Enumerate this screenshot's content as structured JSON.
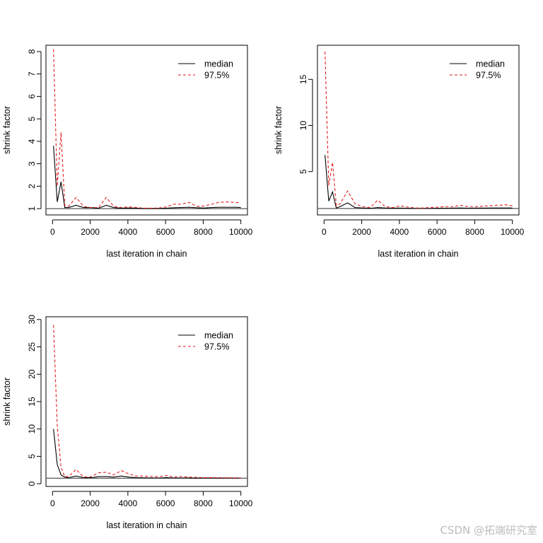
{
  "chart_data": [
    {
      "type": "line",
      "xlabel": "last iteration in chain",
      "ylabel": "shrink factor",
      "xticks": [
        0,
        2000,
        4000,
        6000,
        8000,
        10000
      ],
      "yticks": [
        1,
        2,
        3,
        4,
        5,
        6,
        7,
        8
      ],
      "xlim": [
        -350,
        10350
      ],
      "ylim": [
        0.72,
        8.28
      ],
      "reference_line": 1,
      "legend_position": "top-right",
      "series": [
        {
          "name": "median",
          "color": "#000000",
          "dash": "solid",
          "x": [
            50,
            250,
            450,
            650,
            850,
            1250,
            1650,
            2050,
            2450,
            2850,
            3250,
            3650,
            4050,
            4450,
            4850,
            5250,
            5650,
            6050,
            6450,
            6850,
            7250,
            7650,
            8050,
            8450,
            8850,
            9250,
            9650,
            10000
          ],
          "y": [
            3.8,
            1.3,
            2.2,
            1.05,
            1.05,
            1.15,
            1.05,
            1.05,
            1.02,
            1.15,
            1.05,
            1.02,
            1.03,
            1.02,
            1.01,
            1.01,
            1.01,
            1.02,
            1.04,
            1.05,
            1.06,
            1.04,
            1.03,
            1.05,
            1.06,
            1.06,
            1.06,
            1.05
          ]
        },
        {
          "name": "97.5%",
          "color": "#e41a1c",
          "dash": "dashed",
          "x": [
            50,
            250,
            450,
            650,
            850,
            1250,
            1650,
            2050,
            2450,
            2850,
            3250,
            3650,
            4050,
            4450,
            4850,
            5250,
            5650,
            6050,
            6450,
            6850,
            7250,
            7650,
            8050,
            8450,
            8850,
            9250,
            9650,
            10000
          ],
          "y": [
            8.1,
            2.0,
            4.4,
            1.15,
            1.1,
            1.5,
            1.1,
            1.05,
            1.05,
            1.5,
            1.1,
            1.05,
            1.08,
            1.05,
            1.02,
            1.02,
            1.03,
            1.08,
            1.2,
            1.2,
            1.28,
            1.1,
            1.12,
            1.2,
            1.28,
            1.3,
            1.28,
            1.25
          ]
        }
      ]
    },
    {
      "type": "line",
      "xlabel": "last iteration in chain",
      "ylabel": "shrink factor",
      "xticks": [
        0,
        2000,
        4000,
        6000,
        8000,
        10000
      ],
      "yticks": [
        5,
        10,
        15
      ],
      "xlim": [
        -350,
        10350
      ],
      "ylim": [
        0.3,
        18.7
      ],
      "reference_line": 1,
      "legend_position": "top-right",
      "series": [
        {
          "name": "median",
          "color": "#000000",
          "dash": "solid",
          "x": [
            50,
            250,
            450,
            650,
            850,
            1250,
            1650,
            2050,
            2450,
            2850,
            3250,
            3650,
            4050,
            4450,
            4850,
            5250,
            5650,
            6050,
            6450,
            6850,
            7250,
            7650,
            8050,
            8450,
            8850,
            9250,
            9650,
            10000
          ],
          "y": [
            6.8,
            1.8,
            2.8,
            1.05,
            1.2,
            1.6,
            1.1,
            1.05,
            1.02,
            1.1,
            1.05,
            1.03,
            1.04,
            1.02,
            1.01,
            1.01,
            1.01,
            1.02,
            1.03,
            1.04,
            1.05,
            1.03,
            1.04,
            1.04,
            1.05,
            1.05,
            1.05,
            1.05
          ]
        },
        {
          "name": "97.5%",
          "color": "#e41a1c",
          "dash": "dashed",
          "x": [
            50,
            250,
            450,
            650,
            850,
            1250,
            1650,
            2050,
            2450,
            2850,
            3250,
            3650,
            4050,
            4450,
            4850,
            5250,
            5650,
            6050,
            6450,
            6850,
            7250,
            7650,
            8050,
            8450,
            8850,
            9250,
            9650,
            10000
          ],
          "y": [
            18.0,
            3.5,
            6.0,
            1.3,
            1.5,
            2.9,
            1.5,
            1.2,
            1.1,
            1.9,
            1.2,
            1.1,
            1.3,
            1.15,
            1.05,
            1.05,
            1.1,
            1.15,
            1.2,
            1.2,
            1.35,
            1.2,
            1.2,
            1.25,
            1.3,
            1.35,
            1.4,
            1.3
          ]
        }
      ]
    },
    {
      "type": "line",
      "xlabel": "last iteration in chain",
      "ylabel": "shrink factor",
      "xticks": [
        0,
        2000,
        4000,
        6000,
        8000,
        10000
      ],
      "yticks": [
        0,
        5,
        10,
        15,
        20,
        25,
        30
      ],
      "xlim": [
        -350,
        10350
      ],
      "ylim": [
        -0.5,
        30.5
      ],
      "reference_line": 1,
      "legend_position": "top-right",
      "series": [
        {
          "name": "median",
          "color": "#000000",
          "dash": "solid",
          "x": [
            50,
            250,
            450,
            650,
            850,
            1250,
            1650,
            2050,
            2450,
            2850,
            3250,
            3650,
            4050,
            4450,
            4850,
            5250,
            5650,
            6050,
            6450,
            6850,
            7250,
            7650,
            8050,
            8450,
            8850,
            9250,
            9650,
            10000
          ],
          "y": [
            10.0,
            3.5,
            1.6,
            1.2,
            1.1,
            1.4,
            1.1,
            1.1,
            1.3,
            1.3,
            1.2,
            1.4,
            1.2,
            1.1,
            1.08,
            1.05,
            1.05,
            1.1,
            1.05,
            1.05,
            1.04,
            1.03,
            1.03,
            1.02,
            1.02,
            1.02,
            1.02,
            1.02
          ]
        },
        {
          "name": "97.5%",
          "color": "#e41a1c",
          "dash": "dashed",
          "x": [
            50,
            250,
            450,
            650,
            850,
            1250,
            1650,
            2050,
            2450,
            2850,
            3250,
            3650,
            4050,
            4450,
            4850,
            5250,
            5650,
            6050,
            6450,
            6850,
            7250,
            7650,
            8050,
            8450,
            8850,
            9250,
            9650,
            10000
          ],
          "y": [
            29.0,
            10.5,
            3.0,
            1.3,
            1.3,
            2.6,
            1.2,
            1.3,
            2.0,
            2.1,
            1.6,
            2.4,
            1.8,
            1.4,
            1.4,
            1.3,
            1.3,
            1.5,
            1.2,
            1.3,
            1.2,
            1.15,
            1.1,
            1.1,
            1.1,
            1.08,
            1.08,
            1.05
          ]
        }
      ]
    }
  ],
  "watermark": "CSDN @拓端研究室"
}
